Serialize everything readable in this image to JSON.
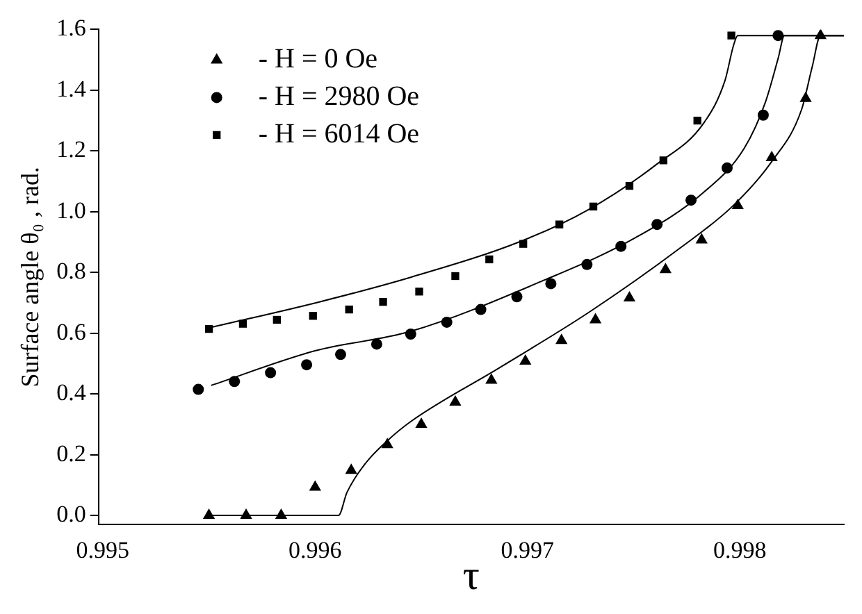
{
  "chart_data": {
    "type": "scatter",
    "xlabel": "τ",
    "ylabel": "Surface angle θ₀ , rad.",
    "xlim": [
      0.99498,
      0.99849
    ],
    "ylim": [
      -0.03,
      1.6
    ],
    "xticks": [
      0.995,
      0.996,
      0.997,
      0.998
    ],
    "yticks": [
      {
        "value": 0,
        "label": "0.0"
      },
      {
        "value": 0.2,
        "label": "0.2"
      },
      {
        "value": 0.4,
        "label": "0.4"
      },
      {
        "value": 0.6,
        "label": "0.6"
      },
      {
        "value": 0.8,
        "label": "0.8"
      },
      {
        "value": 1,
        "label": "1.0"
      },
      {
        "value": 1.2,
        "label": "1.2"
      },
      {
        "value": 1.4,
        "label": "1.4"
      },
      {
        "value": 1.6,
        "label": "1.6"
      }
    ],
    "grid": false,
    "legend": "top left",
    "series": [
      {
        "name": "- H = 0 Oe",
        "marker": "triangle",
        "color": "#000000",
        "x": [
          0.9955,
          0.995675,
          0.99584,
          0.996,
          0.99617,
          0.99634,
          0.9965,
          0.99666,
          0.99683,
          0.99699,
          0.99716,
          0.99732,
          0.99748,
          0.99765,
          0.99782,
          0.99799,
          0.99815,
          0.99831,
          0.99838
        ],
        "values": [
          0,
          0,
          0,
          0.093,
          0.148,
          0.233,
          0.3,
          0.373,
          0.445,
          0.508,
          0.576,
          0.644,
          0.716,
          0.809,
          0.907,
          1.02,
          1.178,
          1.373,
          1.58
        ]
      },
      {
        "name": "- H = 2980 Oe",
        "marker": "circle",
        "color": "#000000",
        "x": [
          0.99545,
          0.99562,
          0.99579,
          0.99596,
          0.99612,
          0.99629,
          0.99645,
          0.99662,
          0.99678,
          0.99695,
          0.99711,
          0.99728,
          0.99744,
          0.99761,
          0.99777,
          0.99794,
          0.99811,
          0.99818
        ],
        "values": [
          0.415,
          0.441,
          0.47,
          0.496,
          0.53,
          0.564,
          0.597,
          0.636,
          0.678,
          0.72,
          0.763,
          0.826,
          0.886,
          0.958,
          1.038,
          1.144,
          1.318,
          1.58
        ]
      },
      {
        "name": "- H = 6014 Oe",
        "marker": "square",
        "color": "#000000",
        "x": [
          0.9955,
          0.99566,
          0.99582,
          0.99599,
          0.99616,
          0.99632,
          0.99649,
          0.99666,
          0.99682,
          0.99698,
          0.99715,
          0.99731,
          0.99748,
          0.99764,
          0.9978,
          0.99796
        ],
        "values": [
          0.614,
          0.631,
          0.644,
          0.657,
          0.678,
          0.703,
          0.737,
          0.788,
          0.843,
          0.894,
          0.958,
          1.017,
          1.085,
          1.169,
          1.3,
          1.58
        ]
      },
      {
        "type": "line",
        "marker": "none",
        "color": "#000000",
        "x": [
          0.9955,
          0.99611,
          0.99615,
          0.99624,
          0.99634,
          0.99645,
          0.99687,
          0.99729,
          0.99772,
          0.99797,
          0.99815,
          0.99829,
          0.99834,
          0.99838,
          0.99849
        ],
        "values": [
          0,
          0,
          0.076,
          0.174,
          0.246,
          0.309,
          0.487,
          0.669,
          0.881,
          1.021,
          1.165,
          1.335,
          1.475,
          1.58,
          1.58
        ]
      },
      {
        "type": "line",
        "marker": "none",
        "color": "#000000",
        "x": [
          0.99551,
          0.996,
          0.99645,
          0.99708,
          0.99751,
          0.99783,
          0.99802,
          0.99812,
          0.99818,
          0.99821,
          0.99849
        ],
        "values": [
          0.428,
          0.542,
          0.606,
          0.775,
          0.915,
          1.064,
          1.208,
          1.36,
          1.504,
          1.58,
          1.58
        ]
      },
      {
        "type": "line",
        "marker": "none",
        "color": "#000000",
        "x": [
          0.99551,
          0.99602,
          0.99645,
          0.99697,
          0.99729,
          0.99761,
          0.99783,
          0.99793,
          0.99797,
          0.99799,
          0.99849
        ],
        "values": [
          0.619,
          0.703,
          0.784,
          0.903,
          1.008,
          1.157,
          1.292,
          1.432,
          1.547,
          1.58,
          1.58
        ]
      }
    ]
  }
}
